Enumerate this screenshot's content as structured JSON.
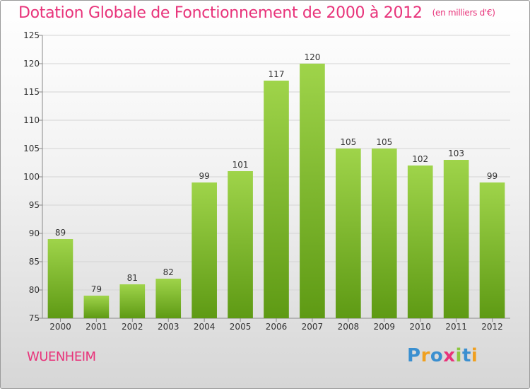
{
  "title": "Dotation Globale de Fonctionnement de 2000 à 2012",
  "unit": "(en milliers d'€)",
  "commune": "WUENHEIM",
  "logo": {
    "letters": [
      "P",
      "r",
      "o",
      "x",
      "i",
      "t",
      "i"
    ],
    "colors": [
      "#3a8fd0",
      "#f0a020",
      "#3a8fd0",
      "#e8337a",
      "#8cc63f",
      "#3a8fd0",
      "#f0a020"
    ]
  },
  "colors": {
    "bar_top": "#9fd44a",
    "bar_bottom": "#5e9a14",
    "accent": "#e8337a"
  },
  "chart_data": {
    "type": "bar",
    "categories": [
      "2000",
      "2001",
      "2002",
      "2003",
      "2004",
      "2005",
      "2006",
      "2007",
      "2008",
      "2009",
      "2010",
      "2011",
      "2012"
    ],
    "values": [
      89,
      79,
      81,
      82,
      99,
      101,
      117,
      120,
      105,
      105,
      102,
      103,
      99
    ],
    "data_labels": [
      "89",
      "79",
      "81",
      "82",
      "99",
      "101",
      "117",
      "120",
      "105",
      "105",
      "102",
      "103",
      "99"
    ],
    "yticks": [
      "75",
      "80",
      "85",
      "90",
      "95",
      "100",
      "105",
      "110",
      "115",
      "120",
      "125"
    ],
    "ylim": [
      75,
      125
    ],
    "grid": true
  }
}
